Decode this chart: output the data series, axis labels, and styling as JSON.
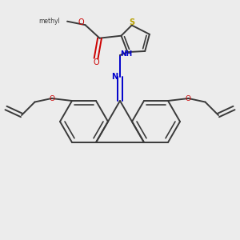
{
  "background_color": "#ececec",
  "bond_color": "#3a3a3a",
  "sulfur_color": "#b8a000",
  "oxygen_color": "#cc0000",
  "nitrogen_color": "#0000cc",
  "line_width": 1.4,
  "fig_width": 3.0,
  "fig_height": 3.0,
  "dpi": 100,
  "xlim": [
    0,
    10
  ],
  "ylim": [
    0,
    10
  ]
}
